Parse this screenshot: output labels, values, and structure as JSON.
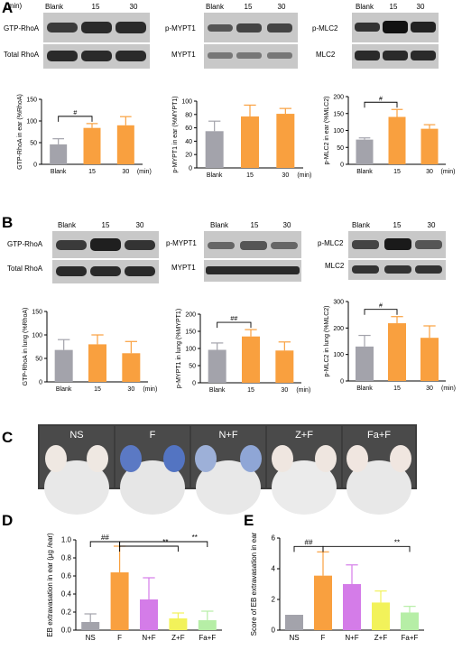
{
  "colors": {
    "gray": "#a3a3ab",
    "orange": "#f9a03f",
    "purple": "#d47ce8",
    "yellow": "#f2f25a",
    "green": "#b6eea6",
    "blot_bg": "#cfcfcf",
    "band": "#1c1c1c"
  },
  "panels": {
    "A": {
      "letter": "A",
      "blots": [
        {
          "unit": "(min)",
          "lanes": [
            "Blank",
            "15",
            "30"
          ],
          "rows": [
            "GTP-RhoA",
            "Total RhoA"
          ]
        },
        {
          "lanes": [
            "Blank",
            "15",
            "30"
          ],
          "rows": [
            "p-MYPT1",
            "MYPT1"
          ]
        },
        {
          "lanes": [
            "Blank",
            "15",
            "30"
          ],
          "rows": [
            "p-MLC2",
            "MLC2"
          ]
        }
      ]
    },
    "B": {
      "letter": "B",
      "blots": [
        {
          "lanes": [
            "Blank",
            "15",
            "30"
          ],
          "rows": [
            "GTP-RhoA",
            "Total RhoA"
          ]
        },
        {
          "lanes": [
            "Blank",
            "15",
            "30"
          ],
          "rows": [
            "p-MYPT1",
            "MYPT1"
          ]
        },
        {
          "lanes": [
            "Blank",
            "15",
            "30"
          ],
          "rows": [
            "p-MLC2",
            "MLC2"
          ]
        }
      ]
    },
    "C": {
      "letter": "C",
      "labels": [
        "NS",
        "F",
        "N+F",
        "Z+F",
        "Fa+F"
      ]
    },
    "D": {
      "letter": "D"
    },
    "E": {
      "letter": "E"
    }
  },
  "chart_data": [
    {
      "id": "A1",
      "type": "bar",
      "categories": [
        "Blank",
        "15",
        "30"
      ],
      "unit": "(min)",
      "values": [
        46,
        84,
        90
      ],
      "errors": [
        13,
        10,
        20
      ],
      "ylabel": "GTP-RhoA in ear (%RhoA)",
      "ylim": [
        0,
        150
      ],
      "yticks": [
        0,
        50,
        100,
        150
      ],
      "sig": [
        {
          "from": 0,
          "to": 1,
          "label": "#"
        }
      ]
    },
    {
      "id": "A2",
      "type": "bar",
      "categories": [
        "Blank",
        "15",
        "30"
      ],
      "unit": "(min)",
      "values": [
        55,
        77,
        81
      ],
      "errors": [
        15,
        17,
        8
      ],
      "ylabel": "p-MYPT1 in ear (%MYPT1)",
      "ylim": [
        0,
        100
      ],
      "yticks": [
        0,
        20,
        40,
        60,
        80,
        100
      ],
      "sig": []
    },
    {
      "id": "A3",
      "type": "bar",
      "categories": [
        "Blank",
        "15",
        "30"
      ],
      "unit": "(min)",
      "values": [
        73,
        140,
        105
      ],
      "errors": [
        5,
        22,
        12
      ],
      "ylabel": "p-MLC2 in ear (%MLC2)",
      "ylim": [
        0,
        200
      ],
      "yticks": [
        0,
        50,
        100,
        150,
        200
      ],
      "sig": [
        {
          "from": 0,
          "to": 1,
          "label": "#"
        }
      ]
    },
    {
      "id": "B1",
      "type": "bar",
      "categories": [
        "Blank",
        "15",
        "30"
      ],
      "unit": "(min)",
      "values": [
        68,
        80,
        61
      ],
      "errors": [
        22,
        20,
        25
      ],
      "ylabel": "GTP-RhoA in lung (%RhoA)",
      "ylim": [
        0,
        150
      ],
      "yticks": [
        0,
        50,
        100,
        150
      ],
      "sig": []
    },
    {
      "id": "B2",
      "type": "bar",
      "categories": [
        "Blank",
        "15",
        "30"
      ],
      "unit": "(min)",
      "values": [
        96,
        135,
        94
      ],
      "errors": [
        20,
        20,
        25
      ],
      "ylabel": "p-MYPT1 in lung (%MYPT1)",
      "ylim": [
        0,
        200
      ],
      "yticks": [
        0,
        50,
        100,
        150,
        200
      ],
      "sig": [
        {
          "from": 0,
          "to": 1,
          "label": "##"
        }
      ]
    },
    {
      "id": "B3",
      "type": "bar",
      "categories": [
        "Blank",
        "15",
        "30"
      ],
      "unit": "(min)",
      "values": [
        130,
        218,
        163
      ],
      "errors": [
        42,
        25,
        45
      ],
      "ylabel": "p-MLC2 in lung (%MLC2)",
      "ylim": [
        0,
        300
      ],
      "yticks": [
        0,
        100,
        200,
        300
      ],
      "sig": [
        {
          "from": 0,
          "to": 1,
          "label": "#"
        }
      ]
    },
    {
      "id": "D",
      "type": "bar",
      "categories": [
        "NS",
        "F",
        "N+F",
        "Z+F",
        "Fa+F"
      ],
      "values": [
        0.09,
        0.64,
        0.34,
        0.13,
        0.11
      ],
      "errors": [
        0.09,
        0.29,
        0.24,
        0.06,
        0.1
      ],
      "ylabel": "EB extravasation in ear (μg /ear)",
      "ylim": [
        0,
        1.0
      ],
      "yticks": [
        "0.0",
        "0.2",
        "0.4",
        "0.6",
        "0.8",
        "1.0"
      ],
      "sig": [
        {
          "from": 0,
          "to": 1,
          "label": "##",
          "y": 0.98
        },
        {
          "from": 1,
          "to": 4,
          "label": "**",
          "y": 0.98
        },
        {
          "from": 1,
          "to": 3,
          "label": "**",
          "y": 0.93
        }
      ]
    },
    {
      "id": "E",
      "type": "bar",
      "categories": [
        "NS",
        "F",
        "N+F",
        "Z+F",
        "Fa+F"
      ],
      "values": [
        1.0,
        3.55,
        3.0,
        1.8,
        1.15
      ],
      "errors": [
        0,
        1.55,
        1.25,
        0.75,
        0.4
      ],
      "ylabel": "Score of EB extravasation in ear",
      "ylim": [
        0,
        6
      ],
      "yticks": [
        0,
        2,
        4,
        6
      ],
      "sig": [
        {
          "from": 0,
          "to": 1,
          "label": "##",
          "y": 5.45
        },
        {
          "from": 1,
          "to": 4,
          "label": "**",
          "y": 5.45
        }
      ]
    }
  ]
}
